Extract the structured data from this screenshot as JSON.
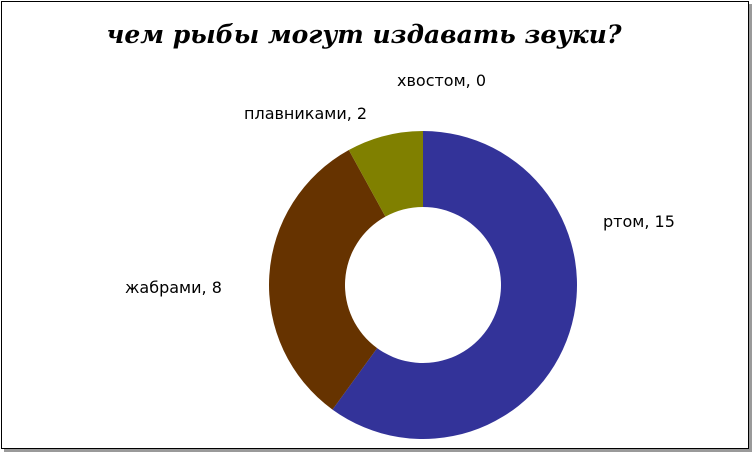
{
  "chart_data": {
    "type": "pie",
    "variant": "doughnut",
    "title": "чем рыбы могут издавать звуки?",
    "categories": [
      "ртом",
      "жабрами",
      "плавниками",
      "хвостом"
    ],
    "values": [
      15,
      8,
      2,
      0
    ],
    "colors": [
      "#333399",
      "#663300",
      "#808000",
      "#999966"
    ],
    "data_labels": [
      "ртом, 15",
      "жабрами, 8",
      "плавниками, 2",
      "хвостом, 0"
    ],
    "legend": "none",
    "grid": false
  }
}
